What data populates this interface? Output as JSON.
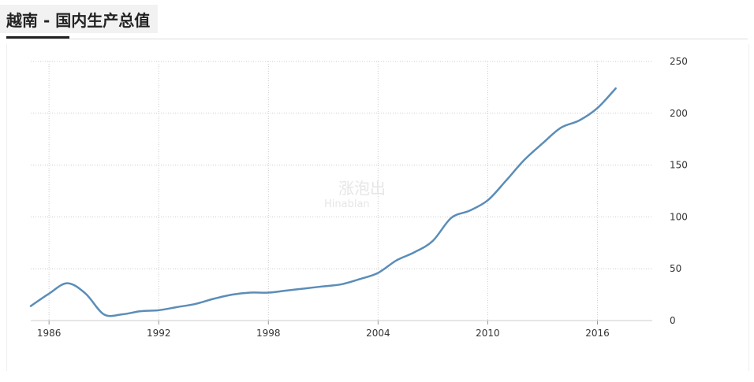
{
  "header": {
    "title": "越南 - 国内生产总值"
  },
  "watermark": {
    "line1": "涨泡出",
    "line2": "Hinablan"
  },
  "colors": {
    "line": "#5b8db8",
    "grid": "#cccccc",
    "tab_background": "#f2f2f2"
  },
  "chart_data": {
    "type": "line",
    "title": "越南 - 国内生产总值",
    "xlabel": "",
    "ylabel": "",
    "xlim": [
      1985,
      2019
    ],
    "ylim": [
      0,
      250
    ],
    "x_ticks": [
      1986,
      1992,
      1998,
      2004,
      2010,
      2016
    ],
    "y_ticks": [
      0,
      50,
      100,
      150,
      200,
      250
    ],
    "y_axis_position": "right",
    "grid": true,
    "legend": "none",
    "series": [
      {
        "x": [
          1985,
          1986,
          1987,
          1988,
          1989,
          1990,
          1991,
          1992,
          1993,
          1994,
          1995,
          1996,
          1997,
          1998,
          1999,
          2000,
          2001,
          2002,
          2003,
          2004,
          2005,
          2006,
          2007,
          2008,
          2009,
          2010,
          2011,
          2012,
          2013,
          2014,
          2015,
          2016,
          2017
        ],
        "values": [
          14,
          26,
          36,
          26,
          6,
          6,
          9,
          10,
          13,
          16,
          21,
          25,
          27,
          27,
          29,
          31,
          33,
          35,
          40,
          46,
          58,
          66,
          77,
          99,
          106,
          116,
          135,
          155,
          171,
          186,
          193,
          205,
          224
        ]
      }
    ]
  }
}
